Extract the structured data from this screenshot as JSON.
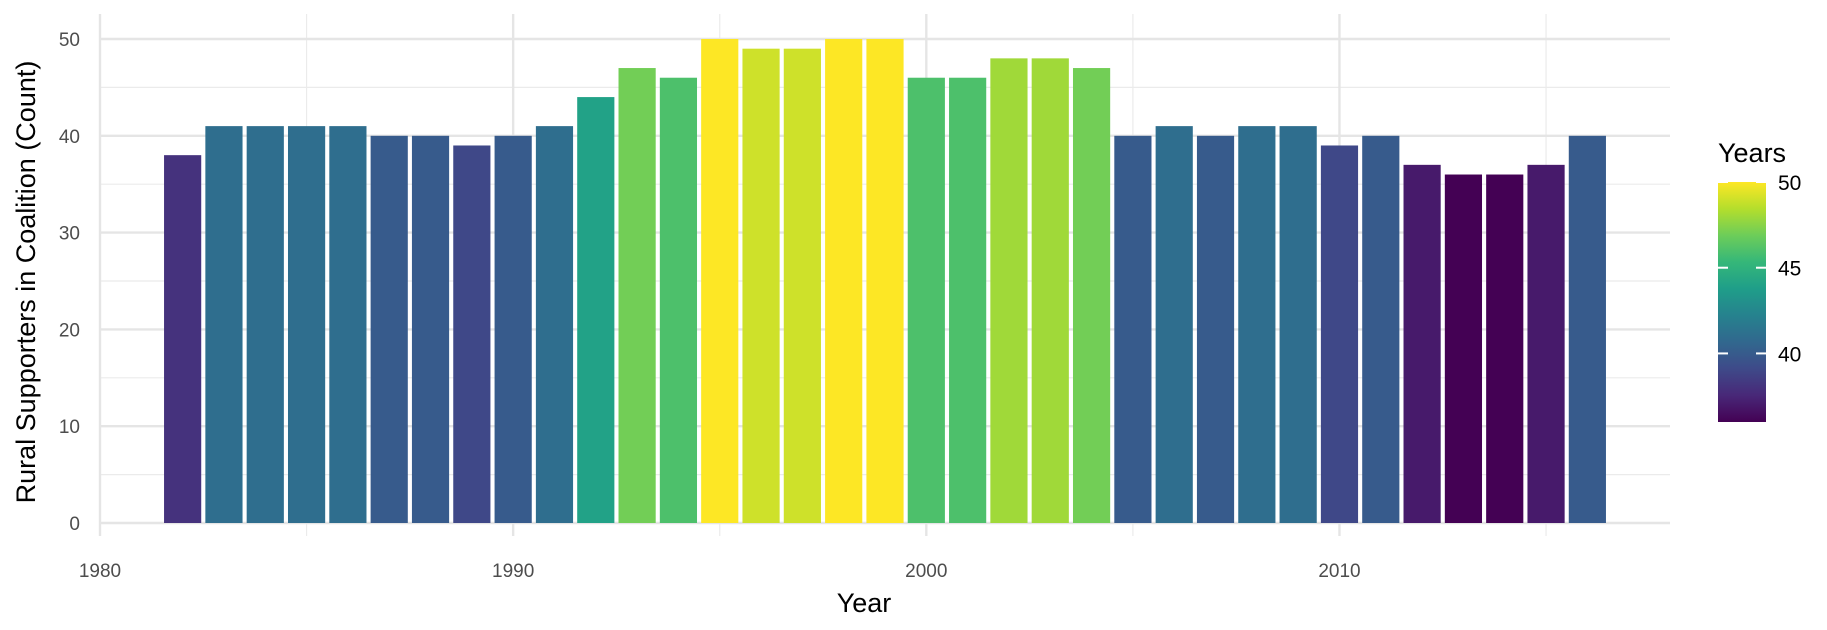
{
  "chart_data": {
    "type": "bar",
    "title": "",
    "xlabel": "Year",
    "ylabel": "Rural Supporters in Coalition (Count)",
    "x": [
      1982,
      1983,
      1984,
      1985,
      1986,
      1987,
      1988,
      1989,
      1990,
      1991,
      1992,
      1993,
      1994,
      1995,
      1996,
      1997,
      1998,
      1999,
      2000,
      2001,
      2002,
      2003,
      2004,
      2005,
      2006,
      2007,
      2008,
      2009,
      2010,
      2011,
      2012,
      2013,
      2014,
      2015,
      2016
    ],
    "values": [
      38,
      41,
      41,
      41,
      41,
      40,
      40,
      39,
      40,
      41,
      44,
      47,
      46,
      50,
      49,
      49,
      50,
      50,
      46,
      46,
      48,
      48,
      47,
      40,
      41,
      40,
      41,
      41,
      39,
      40,
      37,
      36,
      36,
      37,
      40
    ],
    "xlim": [
      1980,
      2018
    ],
    "ylim": [
      0,
      52.5
    ],
    "x_ticks": [
      1980,
      1990,
      2000,
      2010
    ],
    "y_ticks": [
      0,
      10,
      20,
      30,
      40,
      50
    ],
    "grid": true,
    "color_scale": {
      "title": "Years",
      "palette": "viridis",
      "min": 36,
      "max": 50,
      "ticks": [
        40,
        45,
        50
      ],
      "colors": [
        "#440154",
        "#482878",
        "#3E4A89",
        "#31688E",
        "#26828E",
        "#1F9E89",
        "#35B779",
        "#6DCD59",
        "#B4DE2C",
        "#FDE725"
      ]
    },
    "legend_position": "right"
  }
}
